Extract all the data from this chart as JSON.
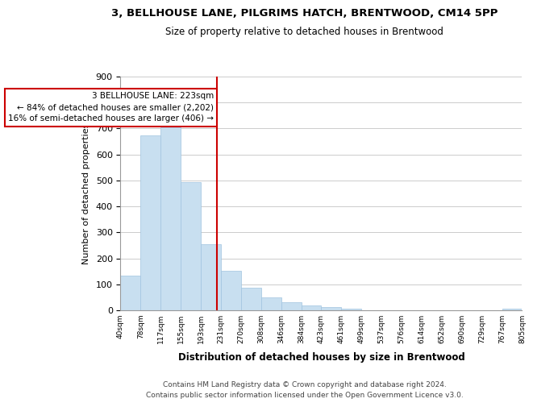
{
  "title": "3, BELLHOUSE LANE, PILGRIMS HATCH, BRENTWOOD, CM14 5PP",
  "subtitle": "Size of property relative to detached houses in Brentwood",
  "xlabel": "Distribution of detached houses by size in Brentwood",
  "ylabel": "Number of detached properties",
  "bar_color": "#c8dff0",
  "bar_edge_color": "#a0c4e0",
  "background_color": "#ffffff",
  "grid_color": "#cccccc",
  "annotation_line_color": "#cc0000",
  "annotation_box_edge_color": "#cc0000",
  "annotation_text_line1": "3 BELLHOUSE LANE: 223sqm",
  "annotation_text_line2": "← 84% of detached houses are smaller (2,202)",
  "annotation_text_line3": "16% of semi-detached houses are larger (406) →",
  "property_size": 223,
  "bin_edges": [
    40,
    78,
    117,
    155,
    193,
    231,
    270,
    308,
    346,
    384,
    423,
    461,
    499,
    537,
    576,
    614,
    652,
    690,
    729,
    767,
    805
  ],
  "bin_labels": [
    "40sqm",
    "78sqm",
    "117sqm",
    "155sqm",
    "193sqm",
    "231sqm",
    "270sqm",
    "308sqm",
    "346sqm",
    "384sqm",
    "423sqm",
    "461sqm",
    "499sqm",
    "537sqm",
    "576sqm",
    "614sqm",
    "652sqm",
    "690sqm",
    "729sqm",
    "767sqm",
    "805sqm"
  ],
  "bar_heights": [
    135,
    675,
    705,
    493,
    253,
    153,
    87,
    50,
    30,
    18,
    12,
    5,
    1,
    0,
    0,
    0,
    0,
    0,
    0,
    5
  ],
  "ylim": [
    0,
    900
  ],
  "yticks": [
    0,
    100,
    200,
    300,
    400,
    500,
    600,
    700,
    800,
    900
  ],
  "footer_line1": "Contains HM Land Registry data © Crown copyright and database right 2024.",
  "footer_line2": "Contains public sector information licensed under the Open Government Licence v3.0."
}
